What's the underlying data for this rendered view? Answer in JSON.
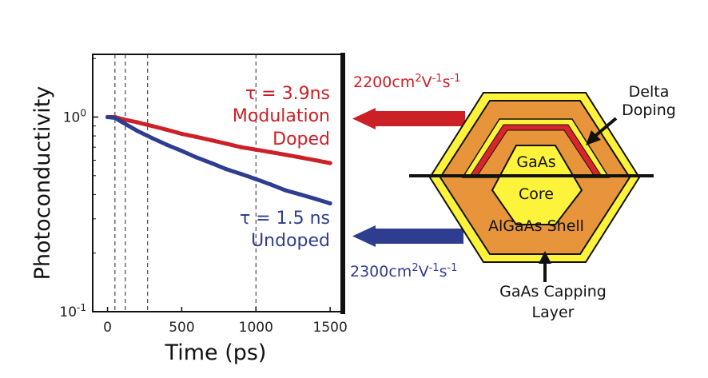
{
  "chart_data": {
    "type": "line",
    "ylabel": "Photoconductivity",
    "xlabel": "Time (ps)",
    "yscale": "log",
    "xlim": [
      -100,
      1580
    ],
    "ylim": [
      0.1,
      2.1
    ],
    "x_ticks": [
      0,
      500,
      1000,
      1500
    ],
    "x_tick_labels": [
      "0",
      "500",
      "1000",
      "1500"
    ],
    "y_ticks": [
      {
        "value": 1,
        "base": "10",
        "exp": "0"
      },
      {
        "value": 0.1,
        "base": "10",
        "exp": "-1"
      }
    ],
    "vlines": [
      50,
      120,
      270,
      1000
    ],
    "series": [
      {
        "name": "Modulation Doped",
        "color": "#cc2027",
        "tau_label": "τ = 3.9ns",
        "label_line1": "Modulation",
        "label_line2": "Doped",
        "x": [
          0,
          50,
          100,
          200,
          300,
          400,
          500,
          600,
          700,
          800,
          900,
          1000,
          1100,
          1200,
          1300,
          1400,
          1500
        ],
        "y": [
          1.0,
          1.0,
          0.975,
          0.94,
          0.9,
          0.86,
          0.82,
          0.79,
          0.76,
          0.73,
          0.7,
          0.68,
          0.66,
          0.64,
          0.62,
          0.6,
          0.58
        ]
      },
      {
        "name": "Undoped",
        "color": "#2e3d8f",
        "tau_label": "τ = 1.5 ns",
        "label_line1": "Undoped",
        "x": [
          0,
          50,
          100,
          200,
          300,
          400,
          500,
          600,
          700,
          800,
          900,
          1000,
          1100,
          1200,
          1300,
          1400,
          1500
        ],
        "y": [
          1.0,
          0.99,
          0.94,
          0.85,
          0.78,
          0.72,
          0.67,
          0.62,
          0.58,
          0.54,
          0.51,
          0.48,
          0.45,
          0.42,
          0.4,
          0.38,
          0.36
        ]
      }
    ]
  },
  "mobility": {
    "doped": {
      "base": "2200cm",
      "exp1": "2",
      "mid": "V",
      "exp2": "-1",
      "tail": "s",
      "exp3": "-1"
    },
    "undoped": {
      "base": "2300cm",
      "exp1": "2",
      "mid": "V",
      "exp2": "-1",
      "tail": "s",
      "exp3": "-1"
    }
  },
  "nanowire": {
    "core_top": "GaAs",
    "core_bottom": "Core",
    "shell": "AlGaAs Shell",
    "delta_line1": "Delta",
    "delta_line2": "Doping",
    "cap_line1": "GaAs Capping",
    "cap_line2": "Layer"
  },
  "colors": {
    "doped": "#cc2027",
    "undoped": "#2e3d8f",
    "shell": "#e8943a",
    "yellow": "#fdf33b",
    "red_layer": "#d8242a"
  }
}
